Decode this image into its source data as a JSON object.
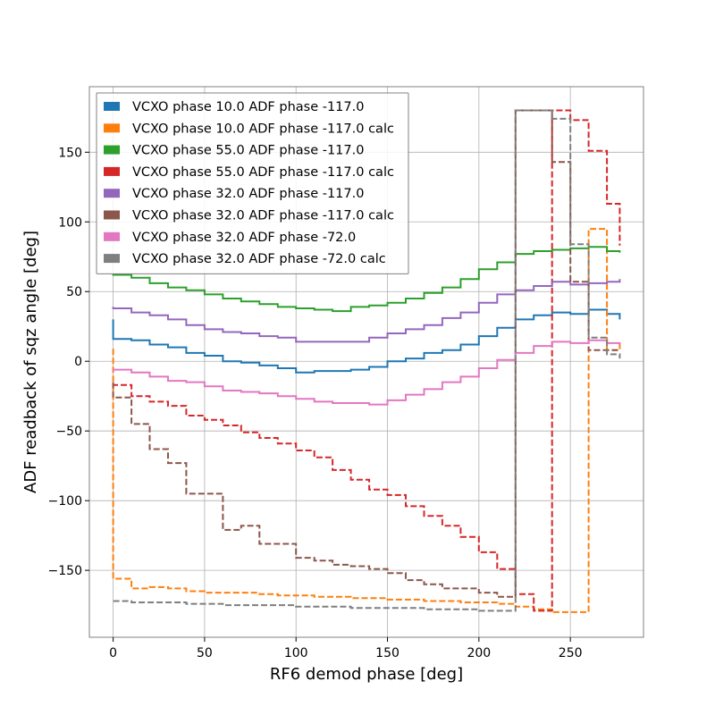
{
  "chart_data": {
    "type": "line",
    "step": true,
    "xlabel": "RF6 demod phase [deg]",
    "ylabel": "ADF readback of sqz angle [deg]",
    "xlim": [
      -13,
      290
    ],
    "ylim": [
      -198,
      197
    ],
    "xticks": [
      0,
      50,
      100,
      150,
      200,
      250
    ],
    "xtick_labels": [
      "0",
      "50",
      "100",
      "150",
      "200",
      "250"
    ],
    "yticks": [
      -150,
      -100,
      -50,
      0,
      50,
      100,
      150
    ],
    "ytick_labels": [
      "−150",
      "−100",
      "−50",
      "0",
      "50",
      "100",
      "150"
    ],
    "grid": true,
    "legend_position": "upper-left",
    "x": [
      0,
      10,
      20,
      30,
      40,
      50,
      60,
      70,
      80,
      90,
      100,
      110,
      120,
      130,
      140,
      150,
      160,
      170,
      180,
      190,
      200,
      210,
      220,
      230,
      240,
      250,
      260,
      270,
      277
    ],
    "series": [
      {
        "name": "VCXO phase 10.0 ADF phase -117.0",
        "color": "#1f77b4",
        "dash": "solid",
        "start": 30,
        "values": [
          16,
          15,
          12,
          10,
          6,
          4,
          0,
          -1,
          -3,
          -5,
          -8,
          -7,
          -7,
          -6,
          -4,
          0,
          2,
          6,
          8,
          12,
          18,
          24,
          30,
          33,
          35,
          34,
          37,
          34,
          30
        ]
      },
      {
        "name": "VCXO phase 10.0 ADF phase -117.0 calc",
        "color": "#ff7f0e",
        "dash": "dashed",
        "start": 9,
        "values": [
          -156,
          -163,
          -162,
          -163,
          -165,
          -166,
          -166,
          -166,
          -167,
          -168,
          -168,
          -169,
          -169,
          -170,
          -170,
          -171,
          -171,
          -172,
          -172,
          -173,
          -173,
          -174,
          -176,
          -178,
          -180,
          -180,
          95,
          8,
          13
        ]
      },
      {
        "name": "VCXO phase 55.0 ADF phase -117.0",
        "color": "#2ca02c",
        "dash": "solid",
        "start": 63,
        "values": [
          62,
          60,
          56,
          53,
          51,
          48,
          45,
          43,
          41,
          39,
          38,
          37,
          36,
          39,
          40,
          42,
          45,
          49,
          53,
          59,
          66,
          71,
          77,
          79,
          80,
          81,
          82,
          79,
          78
        ]
      },
      {
        "name": "VCXO phase 55.0 ADF phase -117.0 calc",
        "color": "#d62728",
        "dash": "dashed",
        "start": -18,
        "values": [
          -17,
          -25,
          -29,
          -32,
          -39,
          -42,
          -46,
          -51,
          -55,
          -59,
          -64,
          -69,
          -78,
          -85,
          -92,
          -96,
          -104,
          -111,
          -118,
          -126,
          -137,
          -149,
          -167,
          -179,
          180,
          173,
          151,
          113,
          83
        ]
      },
      {
        "name": "VCXO phase 32.0 ADF phase -117.0",
        "color": "#9467bd",
        "dash": "solid",
        "start": 39,
        "values": [
          38,
          35,
          33,
          30,
          26,
          23,
          21,
          20,
          18,
          17,
          14,
          14,
          14,
          14,
          17,
          20,
          23,
          26,
          31,
          35,
          42,
          48,
          51,
          54,
          57,
          55,
          56,
          57,
          59
        ]
      },
      {
        "name": "VCXO phase 32.0 ADF phase -117.0 calc",
        "color": "#8c564b",
        "dash": "dashed",
        "start": -15,
        "values": [
          -26,
          -45,
          -63,
          -73,
          -95,
          -95,
          -121,
          -118,
          -131,
          -131,
          -141,
          -143,
          -146,
          -147,
          -149,
          -152,
          -157,
          -160,
          -163,
          -163,
          -166,
          -169,
          180,
          180,
          143,
          57,
          8,
          8,
          8
        ]
      },
      {
        "name": "VCXO phase 32.0 ADF phase -72.0",
        "color": "#e377c2",
        "dash": "solid",
        "start": -7,
        "values": [
          -6,
          -8,
          -11,
          -14,
          -15,
          -18,
          -21,
          -22,
          -23,
          -25,
          -27,
          -29,
          -30,
          -30,
          -31,
          -28,
          -24,
          -20,
          -15,
          -11,
          -5,
          1,
          6,
          11,
          14,
          13,
          15,
          13,
          12
        ]
      },
      {
        "name": "VCXO phase 32.0 ADF phase -72.0 calc",
        "color": "#7f7f7f",
        "dash": "dashed",
        "start": -172,
        "values": [
          -172,
          -173,
          -173,
          -173,
          -174,
          -174,
          -175,
          -175,
          -175,
          -175,
          -176,
          -176,
          -176,
          -177,
          -177,
          -177,
          -177,
          -178,
          -178,
          -178,
          -179,
          -179,
          180,
          180,
          174,
          84,
          17,
          5,
          2
        ]
      }
    ]
  }
}
